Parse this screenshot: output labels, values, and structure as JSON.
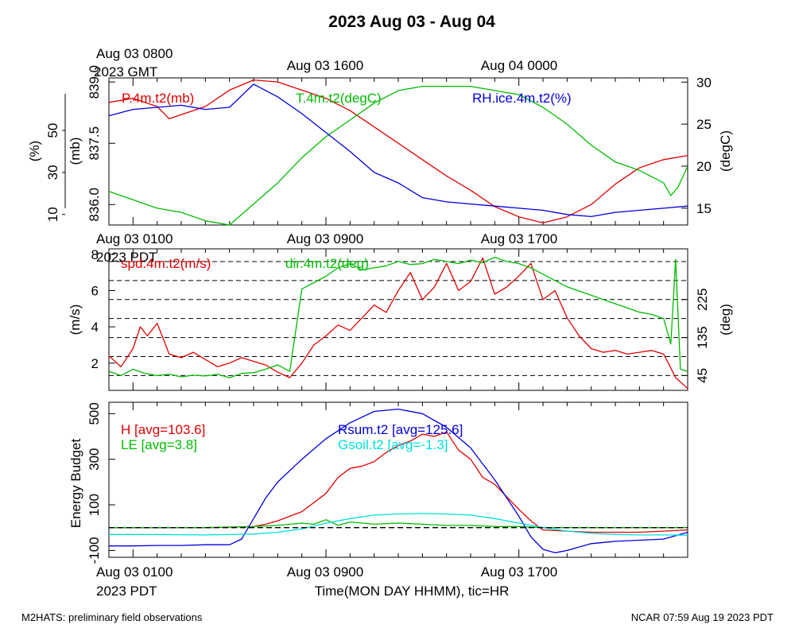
{
  "title": "2023 Aug 03 - Aug 04",
  "footer_left": "M2HATS: preliminary field observations",
  "footer_right": "NCAR 07:59 Aug 19 2023 PDT",
  "xlabel": "Time(MON DAY HHMM), tic=HR",
  "top_time_labels": {
    "gmt_first": "Aug 03 0800",
    "gmt_zone": "2023 GMT",
    "gmt_mid": "Aug 03 1600",
    "gmt_last": "Aug 04 0000"
  },
  "local_time_labels": {
    "first": "Aug 03 0100",
    "zone": "2023 PDT",
    "mid": "Aug 03 0900",
    "last": "Aug 03 1700"
  },
  "colors": {
    "red": "#e00000",
    "green": "#00bb00",
    "blue": "#0000dd",
    "cyan": "#00e0e0",
    "black": "#000000"
  },
  "chart_data": [
    {
      "type": "line",
      "panel": "pressure-temperature-humidity",
      "x_unit": "hour PDT (0 = Aug 03 0000 PDT)",
      "xlim": [
        0.0,
        24.0
      ],
      "y_axes": {
        "pressure": {
          "label": "(mb)",
          "ticks": [
            "836.0",
            "837.5",
            "839.0"
          ],
          "ylim": [
            835.5,
            839.1
          ]
        },
        "humidity": {
          "label": "(%)",
          "ticks": [
            "10",
            "30",
            "50"
          ],
          "ylim": [
            5,
            75
          ]
        },
        "temperature": {
          "label": "(degC)",
          "ticks": [
            "15",
            "20",
            "25",
            "30"
          ],
          "ylim": [
            13,
            30.5
          ]
        }
      },
      "series": [
        {
          "name": "P.4m.t2(mb)",
          "axis": "pressure",
          "color": "#e00000",
          "x": [
            0,
            1,
            2,
            2.5,
            3,
            4,
            5,
            6,
            7,
            8,
            9,
            10,
            11,
            12,
            13,
            14,
            15,
            16,
            17,
            18,
            19,
            20,
            21,
            22,
            23,
            24
          ],
          "y": [
            838.5,
            838.6,
            838.4,
            838.1,
            838.2,
            838.4,
            838.8,
            839.05,
            839.0,
            838.8,
            838.6,
            838.3,
            837.9,
            837.5,
            837.1,
            836.7,
            836.35,
            835.95,
            835.7,
            835.55,
            835.7,
            836.0,
            836.5,
            836.9,
            837.1,
            837.2
          ]
        },
        {
          "name": "T.4m.t2(degC)",
          "axis": "temperature",
          "color": "#00bb00",
          "x": [
            0,
            1,
            2,
            3,
            4,
            5,
            6,
            7,
            8,
            9,
            10,
            11,
            12,
            13,
            14,
            15,
            16,
            17,
            18,
            19,
            20,
            21,
            22,
            23,
            23.3,
            23.6,
            24
          ],
          "y": [
            17.0,
            16.0,
            15.0,
            14.5,
            13.5,
            13.0,
            15.5,
            18.0,
            21.0,
            23.5,
            25.5,
            27.5,
            29.0,
            29.5,
            29.5,
            29.5,
            29.0,
            28.5,
            27.0,
            25.0,
            22.5,
            20.5,
            19.5,
            18.0,
            16.5,
            17.5,
            20.0
          ]
        },
        {
          "name": "RH.ice.4m.t2(%)",
          "axis": "humidity",
          "color": "#0000dd",
          "x": [
            0,
            1,
            2,
            3,
            4,
            5,
            6,
            7,
            8,
            9,
            10,
            11,
            12,
            13,
            14,
            15,
            16,
            17,
            18,
            19,
            20,
            21,
            22,
            23,
            24
          ],
          "y": [
            57,
            60,
            61,
            62,
            60,
            61,
            72,
            66,
            58,
            49,
            40,
            30,
            25,
            18,
            16,
            15,
            14,
            13,
            12,
            10,
            9,
            11,
            12,
            13,
            14
          ]
        }
      ]
    },
    {
      "type": "line",
      "panel": "wind",
      "x_unit": "hour PDT (0 = Aug 03 0000 PDT)",
      "xlim": [
        0.0,
        24.0
      ],
      "y_axes": {
        "speed": {
          "label": "(m/s)",
          "ticks": [
            "2",
            "4",
            "6",
            "8"
          ],
          "ylim": [
            0.5,
            8.3
          ]
        },
        "direction": {
          "label": "(deg)",
          "ticks": [
            "45",
            "135",
            "225"
          ],
          "ylim": [
            10,
            345
          ]
        }
      },
      "reference_lines": {
        "axis": "direction",
        "values": [
          45,
          90,
          135,
          180,
          225,
          270,
          315
        ]
      },
      "series": [
        {
          "name": "spd.4m.t2(m/s)",
          "axis": "speed",
          "color": "#e00000",
          "x": [
            0,
            0.5,
            1,
            1.3,
            1.6,
            2,
            2.5,
            3,
            3.5,
            4,
            4.5,
            5,
            5.5,
            6,
            6.5,
            7,
            7.5,
            8,
            8.5,
            9,
            9.5,
            10,
            10.5,
            11,
            11.5,
            12,
            12.5,
            13,
            13.5,
            14,
            14.5,
            15,
            15.5,
            16,
            16.5,
            17,
            17.5,
            18,
            18.5,
            19,
            19.5,
            20,
            20.5,
            21,
            21.5,
            22,
            22.5,
            23,
            23.2,
            23.5,
            24
          ],
          "y": [
            2.4,
            1.8,
            2.8,
            4.0,
            3.5,
            4.2,
            2.5,
            2.3,
            2.6,
            2.2,
            1.8,
            2.0,
            2.3,
            2.1,
            1.9,
            1.5,
            1.2,
            2.0,
            3.0,
            3.5,
            4.1,
            3.8,
            4.5,
            5.2,
            4.8,
            6.0,
            7.0,
            5.5,
            6.2,
            7.5,
            6.0,
            6.5,
            7.8,
            5.8,
            6.2,
            6.8,
            7.5,
            5.5,
            6.0,
            4.5,
            3.5,
            2.8,
            2.6,
            2.7,
            2.5,
            2.6,
            2.7,
            2.5,
            2.0,
            1.2,
            0.6
          ]
        },
        {
          "name": "dir.4m.t2(deg)",
          "axis": "direction",
          "color": "#00bb00",
          "x": [
            0,
            0.5,
            1,
            1.5,
            2,
            2.5,
            3,
            3.5,
            4,
            4.5,
            5,
            5.5,
            6,
            6.5,
            7,
            7.5,
            8,
            8.5,
            9,
            9.5,
            10,
            10.5,
            11,
            11.5,
            12,
            12.5,
            13,
            13.5,
            14,
            14.5,
            15,
            15.5,
            16,
            16.5,
            17,
            17.5,
            18,
            18.5,
            19,
            19.5,
            20,
            20.5,
            21,
            21.5,
            22,
            22.5,
            23,
            23.3,
            23.5,
            23.7,
            24
          ],
          "y": [
            55,
            45,
            60,
            50,
            45,
            48,
            42,
            46,
            44,
            48,
            40,
            50,
            52,
            60,
            70,
            55,
            250,
            265,
            280,
            300,
            310,
            295,
            300,
            305,
            315,
            308,
            310,
            320,
            315,
            310,
            318,
            312,
            325,
            315,
            310,
            300,
            285,
            270,
            255,
            245,
            235,
            225,
            215,
            205,
            195,
            190,
            180,
            120,
            320,
            60,
            55
          ]
        }
      ]
    },
    {
      "type": "line",
      "panel": "energy-budget",
      "x_unit": "hour PDT (0 = Aug 03 0000 PDT)",
      "xlim": [
        0.0,
        24.0
      ],
      "ylabel": "Energy Budget",
      "y_ticks": [
        "-100",
        "100",
        "300",
        "500"
      ],
      "ylim": [
        -130,
        550
      ],
      "reference_lines": {
        "values": [
          0
        ]
      },
      "series": [
        {
          "name": "H",
          "avg": "[avg=103.6]",
          "color": "#e00000",
          "x": [
            0,
            2,
            4,
            6,
            6.5,
            7,
            8,
            9,
            9.5,
            10,
            10.5,
            11,
            11.5,
            12,
            12.5,
            13,
            13.5,
            14,
            14.5,
            15,
            15.5,
            16,
            17,
            17.5,
            18,
            20,
            22,
            24
          ],
          "y": [
            0,
            0,
            0,
            5,
            15,
            30,
            70,
            150,
            220,
            260,
            270,
            290,
            330,
            360,
            380,
            410,
            400,
            420,
            340,
            300,
            220,
            190,
            80,
            30,
            -10,
            -20,
            -20,
            -10
          ]
        },
        {
          "name": "LE",
          "avg": "[avg=3.8]",
          "color": "#00bb00",
          "x": [
            0,
            2,
            4,
            6,
            7,
            8,
            8.5,
            9,
            9.5,
            10,
            11,
            12,
            13,
            14,
            15,
            16,
            17,
            18,
            20,
            22,
            24
          ],
          "y": [
            0,
            0,
            0,
            5,
            10,
            20,
            15,
            35,
            10,
            25,
            15,
            20,
            15,
            10,
            10,
            5,
            5,
            0,
            0,
            0,
            0
          ]
        },
        {
          "name": "Rsum.t2",
          "avg": "[avg=125.6]",
          "color": "#0000dd",
          "x": [
            0,
            1,
            2,
            3,
            4,
            5,
            5.5,
            6,
            6.5,
            7,
            8,
            9,
            10,
            11,
            12,
            13,
            14,
            15,
            16,
            17,
            17.5,
            18,
            18.5,
            19,
            20,
            21,
            22,
            23,
            24
          ],
          "y": [
            -80,
            -80,
            -78,
            -78,
            -75,
            -75,
            -50,
            40,
            130,
            200,
            300,
            390,
            460,
            510,
            520,
            500,
            440,
            350,
            210,
            50,
            -40,
            -95,
            -110,
            -100,
            -70,
            -60,
            -55,
            -50,
            -20
          ]
        },
        {
          "name": "Gsoil.t2",
          "avg": "[avg=-1.3]",
          "color": "#00e0e0",
          "x": [
            0,
            2,
            4,
            6,
            7,
            8,
            9,
            10,
            11,
            12,
            13,
            14,
            15,
            16,
            17,
            18,
            19,
            20,
            21,
            22,
            23,
            24
          ],
          "y": [
            -30,
            -30,
            -32,
            -28,
            -20,
            -5,
            20,
            40,
            55,
            60,
            62,
            60,
            55,
            40,
            20,
            0,
            -15,
            -25,
            -30,
            -32,
            -32,
            -33
          ]
        }
      ]
    }
  ]
}
